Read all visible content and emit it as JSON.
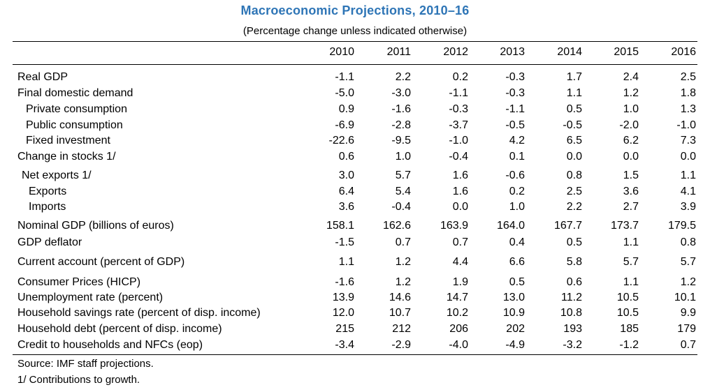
{
  "title": "Macroeconomic Projections, 2010–16",
  "subtitle": "(Percentage change unless indicated otherwise)",
  "years": [
    "2010",
    "2011",
    "2012",
    "2013",
    "2014",
    "2015",
    "2016"
  ],
  "rows": [
    {
      "label": "Real GDP",
      "values": [
        "-1.1",
        "2.2",
        "0.2",
        "-0.3",
        "1.7",
        "2.4",
        "2.5"
      ]
    },
    {
      "label": "Final domestic demand",
      "values": [
        "-5.0",
        "-3.0",
        "-1.1",
        "-0.3",
        "1.1",
        "1.2",
        "1.8"
      ]
    },
    {
      "label": "Private consumption",
      "values": [
        "0.9",
        "-1.6",
        "-0.3",
        "-1.1",
        "0.5",
        "1.0",
        "1.3"
      ]
    },
    {
      "label": "Public consumption",
      "values": [
        "-6.9",
        "-2.8",
        "-3.7",
        "-0.5",
        "-0.5",
        "-2.0",
        "-1.0"
      ]
    },
    {
      "label": "Fixed investment",
      "values": [
        "-22.6",
        "-9.5",
        "-1.0",
        "4.2",
        "6.5",
        "6.2",
        "7.3"
      ]
    },
    {
      "label": "Change in stocks 1/",
      "values": [
        "0.6",
        "1.0",
        "-0.4",
        "0.1",
        "0.0",
        "0.0",
        "0.0"
      ]
    },
    {
      "label": "Net exports 1/",
      "values": [
        "3.0",
        "5.7",
        "1.6",
        "-0.6",
        "0.8",
        "1.5",
        "1.1"
      ]
    },
    {
      "label": "Exports",
      "values": [
        "6.4",
        "5.4",
        "1.6",
        "0.2",
        "2.5",
        "3.6",
        "4.1"
      ]
    },
    {
      "label": "Imports",
      "values": [
        "3.6",
        "-0.4",
        "0.0",
        "1.0",
        "2.2",
        "2.7",
        "3.9"
      ]
    },
    {
      "label": "Nominal GDP (billions of euros)",
      "values": [
        "158.1",
        "162.6",
        "163.9",
        "164.0",
        "167.7",
        "173.7",
        "179.5"
      ]
    },
    {
      "label": "GDP deflator",
      "values": [
        "-1.5",
        "0.7",
        "0.7",
        "0.4",
        "0.5",
        "1.1",
        "0.8"
      ]
    },
    {
      "label": "Current account (percent of GDP)",
      "values": [
        "1.1",
        "1.2",
        "4.4",
        "6.6",
        "5.8",
        "5.7",
        "5.7"
      ]
    },
    {
      "label": "Consumer Prices (HICP)",
      "values": [
        "-1.6",
        "1.2",
        "1.9",
        "0.5",
        "0.6",
        "1.1",
        "1.2"
      ]
    },
    {
      "label": "Unemployment rate (percent)",
      "values": [
        "13.9",
        "14.6",
        "14.7",
        "13.0",
        "11.2",
        "10.5",
        "10.1"
      ]
    },
    {
      "label": "Household savings rate (percent of disp. income)",
      "values": [
        "12.0",
        "10.7",
        "10.2",
        "10.9",
        "10.8",
        "10.5",
        "9.9"
      ]
    },
    {
      "label": "Household debt (percent of disp. income)",
      "values": [
        "215",
        "212",
        "206",
        "202",
        "193",
        "185",
        "179"
      ]
    },
    {
      "label": "Credit to households and NFCs (eop)",
      "values": [
        "-3.4",
        "-2.9",
        "-4.0",
        "-4.9",
        "-3.2",
        "-1.2",
        "0.7"
      ]
    }
  ],
  "notes": {
    "source": "Source: IMF staff projections.",
    "footnote": "1/ Contributions to growth."
  }
}
